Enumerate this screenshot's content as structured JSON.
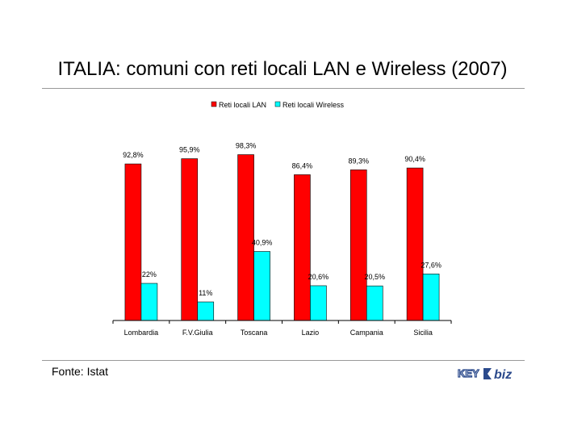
{
  "title": "ITALIA: comuni con reti locali LAN e Wireless (2007)",
  "source": "Fonte: Istat",
  "logo": {
    "left": "KEY",
    "right": "biz",
    "icon": "key4biz-logo"
  },
  "colors": {
    "lan": "#ff0000",
    "wireless": "#00ffff",
    "axis": "#000000",
    "rule": "#999999"
  },
  "chart_data": {
    "type": "bar",
    "categories": [
      "Lombardia",
      "F.V.Giulia",
      "Toscana",
      "Lazio",
      "Campania",
      "Sicilia"
    ],
    "series": [
      {
        "name": "Reti locali LAN",
        "values": [
          92.8,
          95.9,
          98.3,
          86.4,
          89.3,
          90.4
        ],
        "labels": [
          "92,8%",
          "95,9%",
          "98,3%",
          "86,4%",
          "89,3%",
          "90,4%"
        ]
      },
      {
        "name": "Reti locali Wireless",
        "values": [
          22,
          11,
          40.9,
          20.6,
          20.5,
          27.6
        ],
        "labels": [
          "22%",
          "11%",
          "40,9%",
          "20,6%",
          "20,5%",
          "27,6%"
        ]
      }
    ],
    "ylim": [
      0,
      100
    ],
    "legend": "top-center",
    "grid": false
  }
}
